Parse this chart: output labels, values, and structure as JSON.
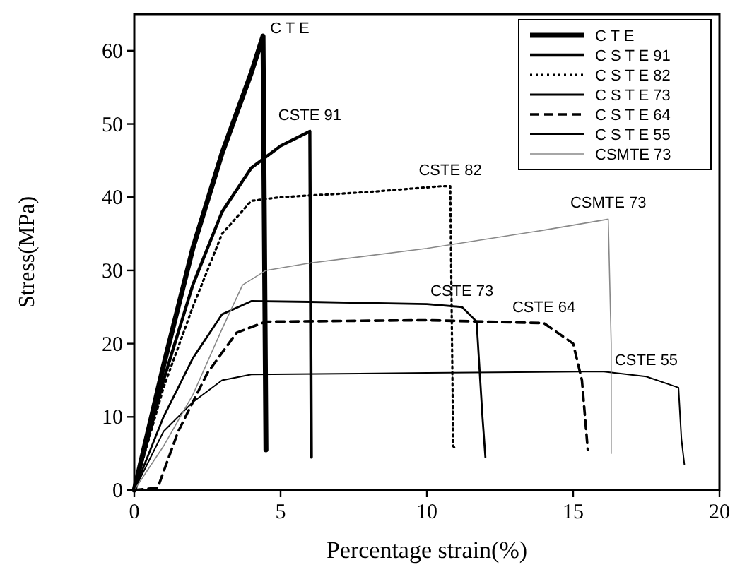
{
  "chart_data": {
    "type": "line",
    "xlabel": "Percentage strain(%)",
    "ylabel": "Stress(MPa)",
    "xlim": [
      0,
      20
    ],
    "ylim": [
      0,
      65
    ],
    "xticks": [
      0,
      5,
      10,
      15,
      20
    ],
    "yticks": [
      0,
      10,
      20,
      30,
      40,
      50,
      60
    ],
    "grid": false,
    "legend": "top right",
    "marker": "none",
    "series": [
      {
        "name": "C T E",
        "color": "#000000",
        "line_style": "solid",
        "x": [
          0,
          1,
          2,
          3,
          4,
          4.4,
          4.5
        ],
        "values": [
          0,
          17,
          33,
          46,
          57,
          62,
          5.5
        ]
      },
      {
        "name": "C S T E 91",
        "color": "#000000",
        "line_style": "solid",
        "x": [
          0,
          1,
          2,
          3,
          4,
          5,
          6,
          6.05
        ],
        "values": [
          0,
          15,
          28,
          38,
          44,
          47,
          49,
          4.5
        ]
      },
      {
        "name": "C S T E 82",
        "color": "#000000",
        "line_style": "dotted",
        "x": [
          0,
          1,
          2,
          3,
          4,
          5,
          8,
          10.5,
          10.8,
          10.9,
          11
        ],
        "values": [
          0,
          14,
          25,
          35,
          39.5,
          40,
          40.7,
          41.5,
          41.5,
          6,
          5.5
        ]
      },
      {
        "name": "C S T E 73",
        "color": "#000000",
        "line_style": "solid",
        "x": [
          0,
          1,
          2,
          3,
          4,
          6,
          10,
          11.2,
          11.7,
          11.9,
          12
        ],
        "values": [
          0,
          10,
          18,
          24,
          25.8,
          25.7,
          25.4,
          25,
          23,
          10,
          4.5
        ]
      },
      {
        "name": "C S T E 64",
        "color": "#000000",
        "line_style": "dashed",
        "x": [
          0,
          0.8,
          1.5,
          2.5,
          3.5,
          4.5,
          10,
          14,
          15,
          15.3,
          15.5
        ],
        "values": [
          0,
          0.3,
          8,
          16,
          21.5,
          23,
          23.2,
          22.8,
          20,
          15,
          5.5
        ]
      },
      {
        "name": "C S T E 55",
        "color": "#000000",
        "line_style": "solid",
        "x": [
          0,
          1,
          2,
          3,
          4,
          10,
          16,
          17.5,
          18.6,
          18.7,
          18.8
        ],
        "values": [
          0,
          8,
          12,
          15,
          15.8,
          16,
          16.2,
          15.5,
          14,
          7,
          3.5
        ]
      },
      {
        "name": "CSMTE 73",
        "color": "#888888",
        "line_style": "solid",
        "x": [
          0,
          1,
          2,
          3,
          3.7,
          4.5,
          6,
          10,
          14,
          16.2,
          16.3,
          16.3
        ],
        "values": [
          0,
          6,
          13,
          22,
          28,
          30,
          31,
          33,
          35.5,
          37,
          20,
          5
        ]
      }
    ],
    "annotations": [
      "C T E",
      "CSTE 91",
      "CSTE 82",
      "CSTE 73",
      "CSTE 64",
      "CSTE 55",
      "CSMTE 73"
    ]
  }
}
